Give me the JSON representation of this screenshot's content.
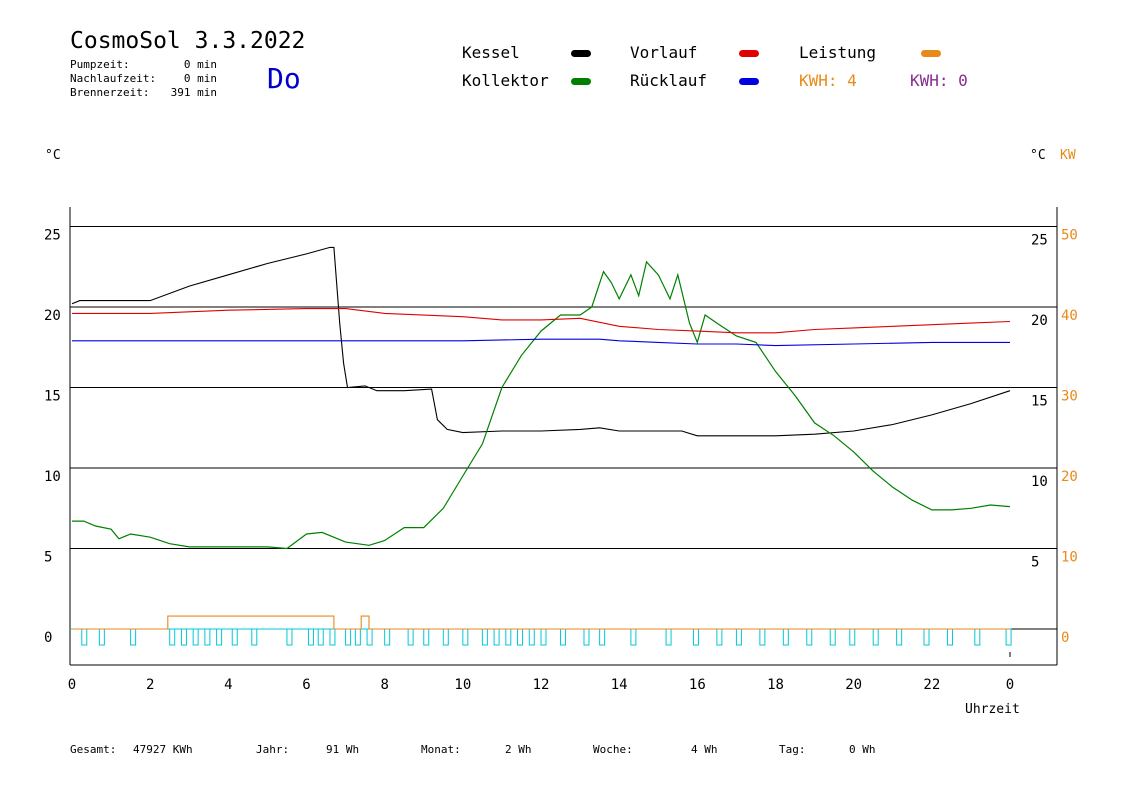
{
  "header": {
    "title": "CosmoSol 3.3.2022",
    "day": "Do",
    "stats": [
      {
        "label": "Pumpzeit:",
        "value": "0 min"
      },
      {
        "label": "Nachlaufzeit:",
        "value": "0 min"
      },
      {
        "label": "Brennerzeit:",
        "value": "391 min"
      }
    ]
  },
  "legend": {
    "kessel": {
      "label": "Kessel",
      "color": "#000000"
    },
    "kollektor": {
      "label": "Kollektor",
      "color": "#008000"
    },
    "vorlauf": {
      "label": "Vorlauf",
      "color": "#e00000"
    },
    "ruecklauf": {
      "label": "Rücklauf",
      "color": "#0000e0"
    },
    "leistung": {
      "label": "Leistung",
      "color": "#e88a1a"
    },
    "kwh1": "KWH: 4",
    "kwh2": "KWH: 0"
  },
  "axes": {
    "left_unit": "°C",
    "right_unit_c": "°C",
    "right_unit_kw": "KW",
    "xlabel": "Uhrzeit"
  },
  "footer": {
    "gesamt_label": "Gesamt:",
    "gesamt_value": "47927 KWh",
    "jahr_label": "Jahr:",
    "jahr_value": "91 Wh",
    "monat_label": "Monat:",
    "monat_value": "2 Wh",
    "woche_label": "Woche:",
    "woche_value": "4 Wh",
    "tag_label": "Tag:",
    "tag_value": "0 Wh"
  },
  "chart_data": {
    "type": "line",
    "xlim": [
      0,
      24
    ],
    "ylim": [
      -2,
      27
    ],
    "y2lim": [
      -4,
      54
    ],
    "x_ticks": [
      "0",
      "2",
      "4",
      "6",
      "8",
      "10",
      "12",
      "14",
      "16",
      "18",
      "20",
      "22",
      "0"
    ],
    "y_ticks": [
      0,
      5,
      10,
      15,
      20,
      25
    ],
    "y_ticks_right_c": [
      5,
      10,
      15,
      20,
      25
    ],
    "y_ticks_right_kw": [
      0,
      10,
      20,
      30,
      40,
      50
    ],
    "grid_y": true,
    "series": [
      {
        "name": "Kessel",
        "color": "#000000",
        "points": [
          [
            0,
            20.2
          ],
          [
            0.2,
            20.4
          ],
          [
            2,
            20.4
          ],
          [
            3,
            21.3
          ],
          [
            4,
            22
          ],
          [
            5,
            22.7
          ],
          [
            6,
            23.3
          ],
          [
            6.6,
            23.7
          ],
          [
            6.7,
            23.7
          ],
          [
            6.85,
            19
          ],
          [
            6.95,
            16.5
          ],
          [
            7.05,
            15
          ],
          [
            7.5,
            15.1
          ],
          [
            7.8,
            14.8
          ],
          [
            8.5,
            14.8
          ],
          [
            9.2,
            14.9
          ],
          [
            9.35,
            13
          ],
          [
            9.6,
            12.4
          ],
          [
            10,
            12.2
          ],
          [
            11,
            12.3
          ],
          [
            12,
            12.3
          ],
          [
            13,
            12.4
          ],
          [
            13.5,
            12.5
          ],
          [
            14,
            12.3
          ],
          [
            15,
            12.3
          ],
          [
            15.6,
            12.3
          ],
          [
            16,
            12
          ],
          [
            17,
            12
          ],
          [
            18,
            12
          ],
          [
            19,
            12.1
          ],
          [
            20,
            12.3
          ],
          [
            21,
            12.7
          ],
          [
            22,
            13.3
          ],
          [
            23,
            14
          ],
          [
            24,
            14.8
          ]
        ]
      },
      {
        "name": "Kollektor",
        "color": "#008000",
        "points": [
          [
            0,
            6.7
          ],
          [
            0.3,
            6.7
          ],
          [
            0.6,
            6.4
          ],
          [
            1,
            6.2
          ],
          [
            1.2,
            5.6
          ],
          [
            1.5,
            5.9
          ],
          [
            2,
            5.7
          ],
          [
            2.5,
            5.3
          ],
          [
            3,
            5.1
          ],
          [
            4,
            5.1
          ],
          [
            5,
            5.1
          ],
          [
            5.5,
            5
          ],
          [
            6,
            5.9
          ],
          [
            6.4,
            6
          ],
          [
            7,
            5.4
          ],
          [
            7.6,
            5.2
          ],
          [
            8,
            5.5
          ],
          [
            8.5,
            6.3
          ],
          [
            9,
            6.3
          ],
          [
            9.5,
            7.5
          ],
          [
            10,
            9.5
          ],
          [
            10.5,
            11.5
          ],
          [
            11,
            15
          ],
          [
            11.5,
            17
          ],
          [
            12,
            18.5
          ],
          [
            12.5,
            19.5
          ],
          [
            13,
            19.5
          ],
          [
            13.3,
            20
          ],
          [
            13.6,
            22.2
          ],
          [
            13.8,
            21.5
          ],
          [
            14,
            20.5
          ],
          [
            14.3,
            22
          ],
          [
            14.5,
            20.7
          ],
          [
            14.7,
            22.8
          ],
          [
            15,
            22
          ],
          [
            15.3,
            20.5
          ],
          [
            15.5,
            22
          ],
          [
            15.8,
            19
          ],
          [
            16,
            17.8
          ],
          [
            16.2,
            19.5
          ],
          [
            16.5,
            19
          ],
          [
            17,
            18.2
          ],
          [
            17.5,
            17.8
          ],
          [
            18,
            16
          ],
          [
            18.5,
            14.5
          ],
          [
            19,
            12.8
          ],
          [
            19.5,
            12
          ],
          [
            20,
            11
          ],
          [
            20.5,
            9.8
          ],
          [
            21,
            8.8
          ],
          [
            21.5,
            8
          ],
          [
            22,
            7.4
          ],
          [
            22.5,
            7.4
          ],
          [
            23,
            7.5
          ],
          [
            23.5,
            7.7
          ],
          [
            24,
            7.6
          ]
        ]
      },
      {
        "name": "Vorlauf",
        "color": "#e00000",
        "points": [
          [
            0,
            19.6
          ],
          [
            2,
            19.6
          ],
          [
            4,
            19.8
          ],
          [
            6,
            19.9
          ],
          [
            7,
            19.9
          ],
          [
            8,
            19.6
          ],
          [
            10,
            19.4
          ],
          [
            11,
            19.2
          ],
          [
            12,
            19.2
          ],
          [
            13,
            19.3
          ],
          [
            14,
            18.8
          ],
          [
            15,
            18.6
          ],
          [
            16,
            18.5
          ],
          [
            17,
            18.4
          ],
          [
            18,
            18.4
          ],
          [
            19,
            18.6
          ],
          [
            20,
            18.7
          ],
          [
            21,
            18.8
          ],
          [
            22,
            18.9
          ],
          [
            23,
            19
          ],
          [
            24,
            19.1
          ]
        ]
      },
      {
        "name": "Rücklauf",
        "color": "#0000e0",
        "points": [
          [
            0,
            17.9
          ],
          [
            4,
            17.9
          ],
          [
            7,
            17.9
          ],
          [
            10,
            17.9
          ],
          [
            12,
            18
          ],
          [
            13.5,
            18
          ],
          [
            14,
            17.9
          ],
          [
            15,
            17.8
          ],
          [
            16,
            17.7
          ],
          [
            17,
            17.7
          ],
          [
            18,
            17.6
          ],
          [
            20,
            17.7
          ],
          [
            22,
            17.8
          ],
          [
            24,
            17.8
          ]
        ]
      },
      {
        "name": "Leistung",
        "color": "#e88a1a",
        "axis": "kw",
        "points": [
          [
            0,
            0
          ],
          [
            2.45,
            0
          ],
          [
            2.45,
            1.6
          ],
          [
            6.7,
            1.6
          ],
          [
            6.7,
            0
          ],
          [
            7.4,
            0
          ],
          [
            7.4,
            1.6
          ],
          [
            7.6,
            1.6
          ],
          [
            7.6,
            0
          ],
          [
            24,
            0
          ]
        ]
      }
    ],
    "pump_pulses": {
      "color": "#00c8d8",
      "starts": [
        0.25,
        0.7,
        1.5,
        2.5,
        2.8,
        3.1,
        3.4,
        3.7,
        4.1,
        4.6,
        5.5,
        6.05,
        6.3,
        6.6,
        7.0,
        7.25,
        7.55,
        8.0,
        8.6,
        9.0,
        9.5,
        10.0,
        10.5,
        10.8,
        11.1,
        11.4,
        11.7,
        12.0,
        12.5,
        13.1,
        13.5,
        14.3,
        15.2,
        15.9,
        16.5,
        17.0,
        17.6,
        18.2,
        18.8,
        19.4,
        19.9,
        20.5,
        21.1,
        21.8,
        22.4,
        23.1,
        23.9
      ]
    }
  }
}
